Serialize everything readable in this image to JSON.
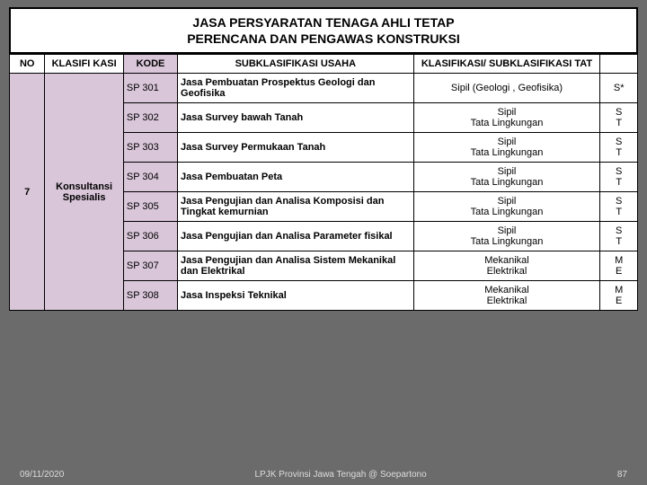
{
  "title_line1": "JASA PERSYARATAN TENAGA AHLI TETAP",
  "title_line2": "PERENCANA DAN PENGAWAS KONSTRUKSI",
  "headers": {
    "no": "NO",
    "klasifikasi": "KLASIFI KASI",
    "kode": "KODE",
    "sub_usaha": "SUBKLASIFIKASI USAHA",
    "sub_tat": "KLASIFIKASI/ SUBKLASIFIKASI TAT",
    "last": ""
  },
  "group_no": "7",
  "group_klas": "Konsultansi Spesialis",
  "rows": [
    {
      "kode": "SP 301",
      "usaha": "Jasa Pembuatan Prospektus Geologi dan Geofisika",
      "tat": "Sipil (Geologi , Geofisika)",
      "last": "S*"
    },
    {
      "kode": "SP 302",
      "usaha": "Jasa Survey bawah Tanah",
      "tat": "Sipil\nTata Lingkungan",
      "last": "S\nT"
    },
    {
      "kode": "SP 303",
      "usaha": "Jasa Survey Permukaan Tanah",
      "tat": "Sipil\nTata Lingkungan",
      "last": "S\nT"
    },
    {
      "kode": "SP 304",
      "usaha": "Jasa Pembuatan Peta",
      "tat": "Sipil\nTata Lingkungan",
      "last": "S\nT"
    },
    {
      "kode": "SP 305",
      "usaha": "Jasa Pengujian dan Analisa Komposisi dan Tingkat kemurnian",
      "tat": "Sipil\nTata Lingkungan",
      "last": "S\nT"
    },
    {
      "kode": "SP 306",
      "usaha": "Jasa Pengujian dan Analisa Parameter fisikal",
      "tat": "Sipil\nTata Lingkungan",
      "last": "S\nT"
    },
    {
      "kode": "SP 307",
      "usaha": "Jasa Pengujian dan Analisa Sistem Mekanikal dan Elektrikal",
      "tat": "Mekanikal\nElektrikal",
      "last": "M\nE"
    },
    {
      "kode": "SP 308",
      "usaha": "Jasa Inspeksi Teknikal",
      "tat": "Mekanikal\nElektrikal",
      "last": "M\nE"
    }
  ],
  "footer": {
    "date": "09/11/2020",
    "center": "LPJK Provinsi Jawa Tengah @ Soepartono",
    "page": "87"
  }
}
